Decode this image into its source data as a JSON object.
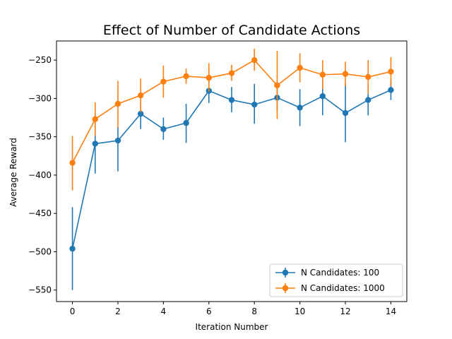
{
  "chart_data": {
    "type": "line",
    "title": "Effect of Number of Candidate Actions",
    "xlabel": "Iteration Number",
    "ylabel": "Average Reward",
    "xlim": [
      -0.7,
      14.7
    ],
    "ylim": [
      -565,
      -225
    ],
    "xticks": [
      0,
      2,
      4,
      6,
      8,
      10,
      12,
      14
    ],
    "yticks": [
      -550,
      -500,
      -450,
      -400,
      -350,
      -300,
      -250
    ],
    "grid": false,
    "legend_position": "lower-right",
    "x": [
      0,
      1,
      2,
      3,
      4,
      5,
      6,
      7,
      8,
      9,
      10,
      11,
      12,
      13,
      14
    ],
    "series": [
      {
        "name": "N Candidates: 100",
        "color": "#1f77b4",
        "values": [
          -496,
          -359,
          -355,
          -320,
          -340,
          -332,
          -290,
          -302,
          -308,
          -299,
          -312,
          -297,
          -319,
          -302,
          -289
        ],
        "err_low": [
          -550,
          -398,
          -395,
          -340,
          -354,
          -358,
          -306,
          -318,
          -333,
          -316,
          -336,
          -322,
          -357,
          -322,
          -302
        ],
        "err_high": [
          -442,
          -320,
          -337,
          -300,
          -325,
          -307,
          -274,
          -285,
          -281,
          -283,
          -288,
          -272,
          -281,
          -283,
          -276
        ]
      },
      {
        "name": "N Candidates: 1000",
        "color": "#ff7f0e",
        "values": [
          -384,
          -327,
          -307,
          -296,
          -278,
          -271,
          -273,
          -267,
          -250,
          -283,
          -260,
          -269,
          -268,
          -272,
          -265
        ],
        "err_low": [
          -420,
          -349,
          -338,
          -318,
          -299,
          -281,
          -291,
          -277,
          -264,
          -327,
          -279,
          -288,
          -284,
          -294,
          -284
        ],
        "err_high": [
          -349,
          -305,
          -277,
          -274,
          -257,
          -261,
          -254,
          -256,
          -235,
          -238,
          -241,
          -250,
          -252,
          -250,
          -246
        ]
      }
    ]
  }
}
